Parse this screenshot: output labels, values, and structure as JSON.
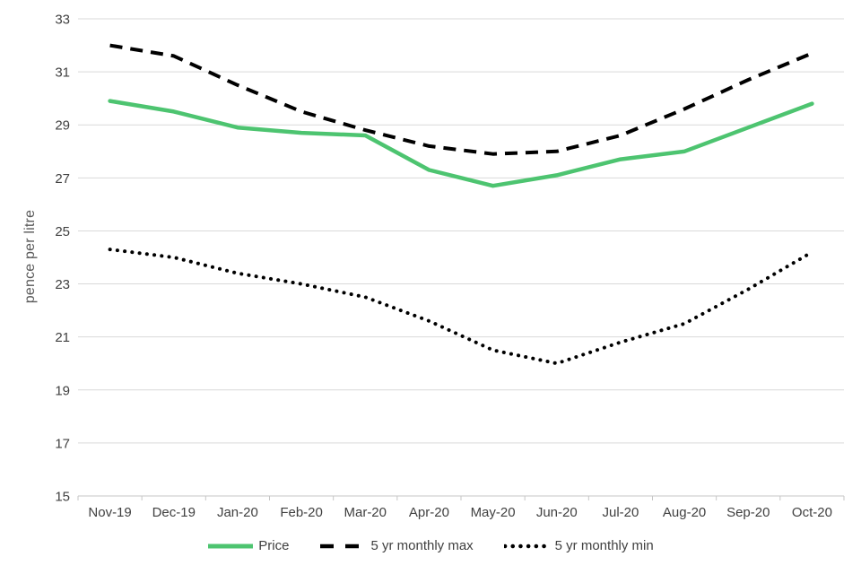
{
  "chart_data": {
    "type": "line",
    "title": "",
    "xlabel": "",
    "ylabel": "pence per litre",
    "ylim": [
      15,
      33
    ],
    "ytick_step": 2,
    "yticks": [
      "33",
      "31",
      "29",
      "27",
      "25",
      "23",
      "21",
      "19",
      "17",
      "15"
    ],
    "categories": [
      "Nov-19",
      "Dec-19",
      "Jan-20",
      "Feb-20",
      "Mar-20",
      "Apr-20",
      "May-20",
      "Jun-20",
      "Jul-20",
      "Aug-20",
      "Sep-20",
      "Oct-20"
    ],
    "series": [
      {
        "name": "Price",
        "line_style": "solid",
        "color": "#4DC470",
        "values": [
          29.9,
          29.5,
          28.9,
          28.7,
          28.6,
          27.3,
          26.7,
          27.1,
          27.7,
          28.0,
          28.9,
          29.8
        ]
      },
      {
        "name": "5 yr monthly max",
        "line_style": "dashed",
        "color": "#000000",
        "values": [
          32.0,
          31.6,
          30.5,
          29.5,
          28.8,
          28.2,
          27.9,
          28.0,
          28.6,
          29.6,
          30.7,
          31.7
        ]
      },
      {
        "name": "5 yr monthly min",
        "line_style": "dotted",
        "color": "#000000",
        "values": [
          24.3,
          24.0,
          23.4,
          23.0,
          22.5,
          21.6,
          20.5,
          20.0,
          20.8,
          21.5,
          22.8,
          24.2
        ]
      }
    ],
    "grid": true,
    "legend_position": "bottom",
    "colors": {
      "grid_line": "#D9D9D9",
      "axis_line": "#C6C6C6",
      "tick_text": "#404040",
      "axis_title_text": "#595959",
      "background": "#FFFFFF"
    }
  }
}
